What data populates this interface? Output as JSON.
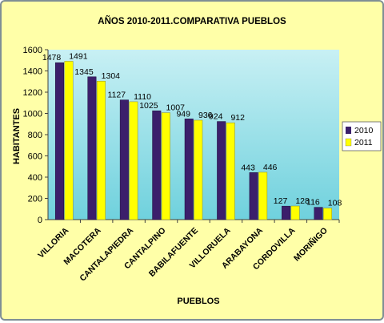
{
  "chart_data": {
    "type": "bar",
    "title": "AÑOS 2010-2011.COMPARATIVA PUEBLOS",
    "xlabel": "PUEBLOS",
    "ylabel": "HABITANTES",
    "ylim": [
      0,
      1600
    ],
    "yticks": [
      0,
      200,
      400,
      600,
      800,
      1000,
      1200,
      1400,
      1600
    ],
    "grid": false,
    "legend_position": "right",
    "categories": [
      "VILLORIA",
      "MACOTERA",
      "CANTALAPIEDRA",
      "CANTALPINO",
      "BABILAFUENTE",
      "VILLORUELA",
      "ARABAYONA",
      "CORDOVILLA",
      "MORIÑIGO"
    ],
    "series": [
      {
        "name": "2010",
        "values": [
          1478,
          1345,
          1127,
          1025,
          949,
          924,
          443,
          127,
          116
        ],
        "color": "#3b1f6b"
      },
      {
        "name": "2011",
        "values": [
          1491,
          1304,
          1110,
          1007,
          936,
          912,
          446,
          128,
          108
        ],
        "color": "#ffff00"
      }
    ],
    "colors": {
      "background": "#ffffa8",
      "plot_area_top": "#c8f0f4",
      "plot_area_bottom": "#6fd1dd"
    }
  }
}
